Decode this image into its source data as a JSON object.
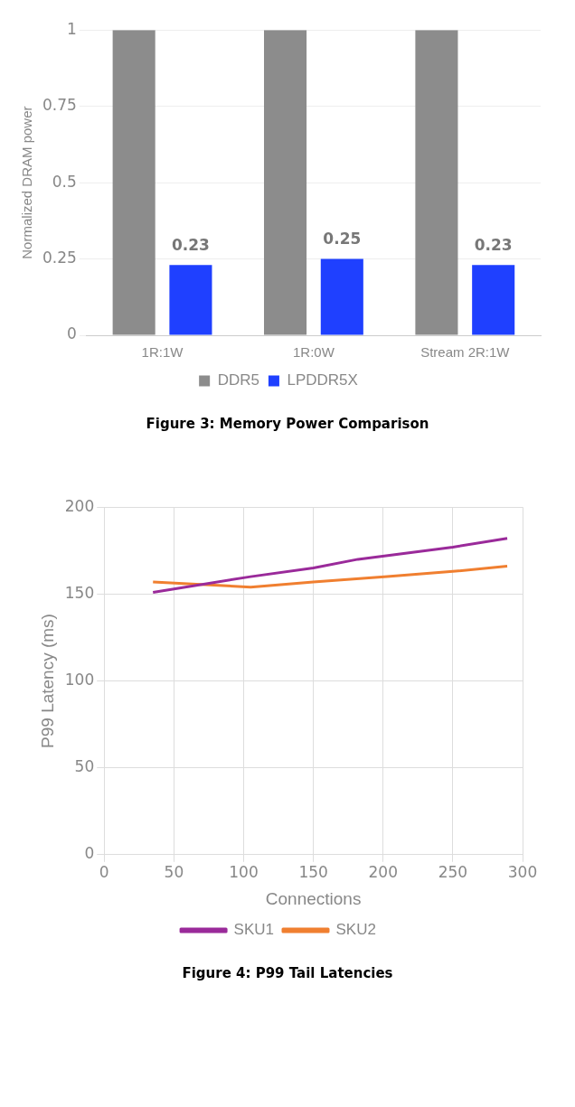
{
  "chart_data": [
    {
      "type": "bar",
      "title": "Figure 3: Memory Power Comparison",
      "ylabel": "Normalized DRAM power",
      "categories": [
        "1R:1W",
        "1R:0W",
        "Stream 2R:1W"
      ],
      "series": [
        {
          "name": "DDR5",
          "color": "#8c8c8c",
          "values": [
            1,
            1,
            1
          ]
        },
        {
          "name": "LPDDR5X",
          "color": "#1f40ff",
          "values": [
            0.23,
            0.25,
            0.23
          ],
          "value_labels": [
            "0.23",
            "0.25",
            "0.23"
          ]
        }
      ],
      "ylim": [
        0,
        1
      ],
      "yticks": [
        0,
        0.25,
        0.5,
        0.75,
        1
      ],
      "grid": "y",
      "legend": "bottom"
    },
    {
      "type": "line",
      "title": "Figure 4: P99 Tail Latencies",
      "xlabel": "Connections",
      "ylabel": "P99 Latency (ms)",
      "series": [
        {
          "name": "SKU1",
          "color": "#9a2a9a",
          "x": [
            35,
            105,
            150,
            182,
            250,
            289
          ],
          "values": [
            151,
            160,
            165,
            170,
            177,
            182
          ]
        },
        {
          "name": "SKU2",
          "color": "#f07f30",
          "x": [
            35,
            105,
            150,
            203,
            250,
            289
          ],
          "values": [
            157,
            154,
            157,
            160,
            163,
            166
          ]
        }
      ],
      "xlim": [
        0,
        300
      ],
      "xticks": [
        0,
        50,
        100,
        150,
        200,
        250,
        300
      ],
      "ylim": [
        0,
        200
      ],
      "yticks": [
        0,
        50,
        100,
        150,
        200
      ],
      "grid": true,
      "legend": "bottom",
      "marker": "none",
      "line_style": "solid"
    }
  ]
}
